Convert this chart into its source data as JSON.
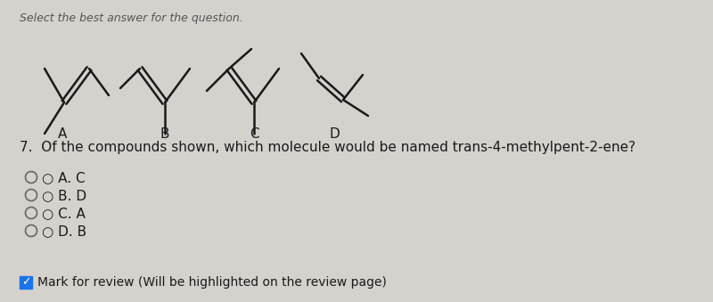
{
  "bg_color": "#d5d1cd",
  "title_text": "Select the best answer for the question.",
  "question_text": "7.  Of the compounds shown, which molecule would be named trans-4-methylpent-2-ene?",
  "options": [
    "A. C",
    "B. D",
    "C. A",
    "D. B"
  ],
  "footer_text": "Mark for review (Will be highlighted on the review page)",
  "molecule_labels": [
    "A",
    "B",
    "C",
    "D"
  ],
  "line_color": "#1a1a1a",
  "line_width": 1.8,
  "checkbox_color": "#1a73e8",
  "title_color": "#555555",
  "text_color": "#1a1a1a"
}
